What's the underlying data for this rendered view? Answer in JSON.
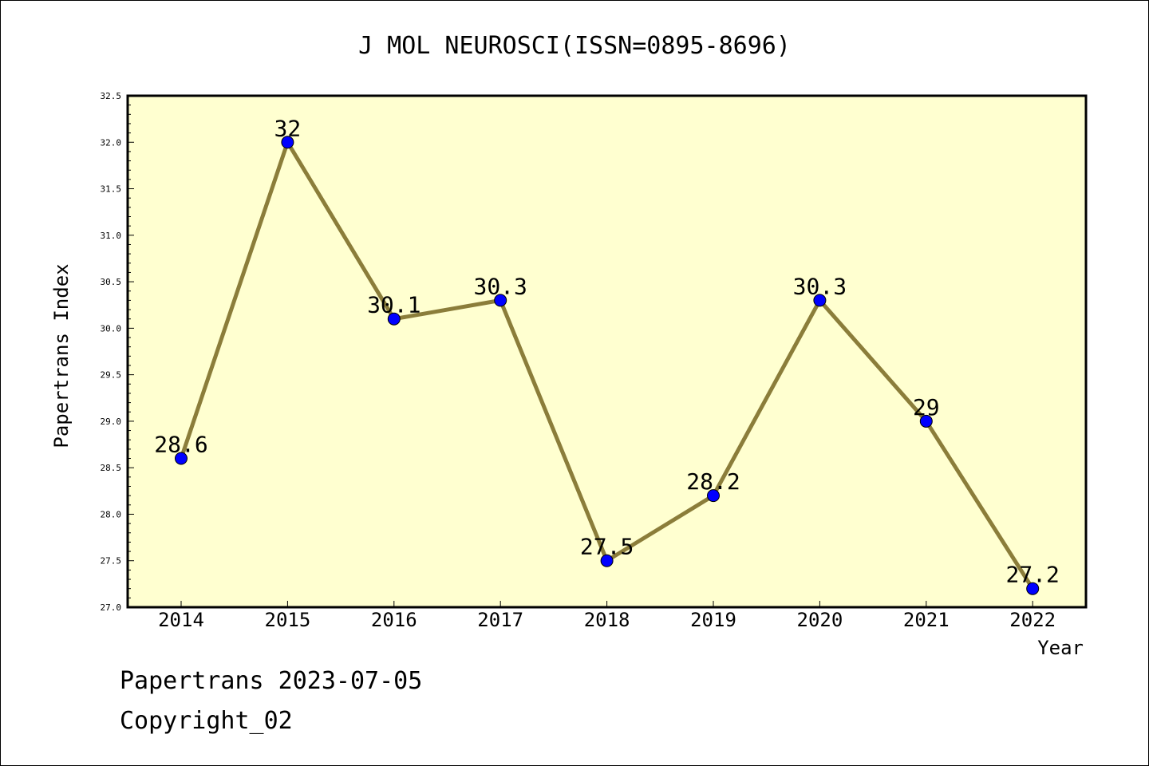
{
  "chart_data": {
    "type": "line",
    "title": "J MOL NEUROSCI(ISSN=0895-8696)",
    "xlabel": "Year",
    "ylabel": "Papertrans Index",
    "categories": [
      "2014",
      "2015",
      "2016",
      "2017",
      "2018",
      "2019",
      "2020",
      "2021",
      "2022"
    ],
    "series": [
      {
        "values": [
          28.6,
          32,
          30.1,
          30.3,
          27.5,
          28.2,
          30.3,
          29,
          27.2
        ],
        "labels": [
          "28.6",
          "32",
          "30.1",
          "30.3",
          "27.5",
          "28.2",
          "30.3",
          "29",
          "27.2"
        ]
      }
    ],
    "ylim": [
      27.0,
      32.5
    ],
    "yticks": [
      "27.0",
      "27.5",
      "28.0",
      "28.5",
      "29.0",
      "29.5",
      "30.0",
      "30.5",
      "31.0",
      "31.5",
      "32.0",
      "32.5"
    ],
    "grid": false,
    "legend": "none",
    "colors": {
      "plot_background": "#ffffd0",
      "line": "#8b7d3a",
      "marker": "#0000ff"
    }
  },
  "footer": {
    "line1": "Papertrans 2023-07-05",
    "line2": "Copyright_02"
  }
}
